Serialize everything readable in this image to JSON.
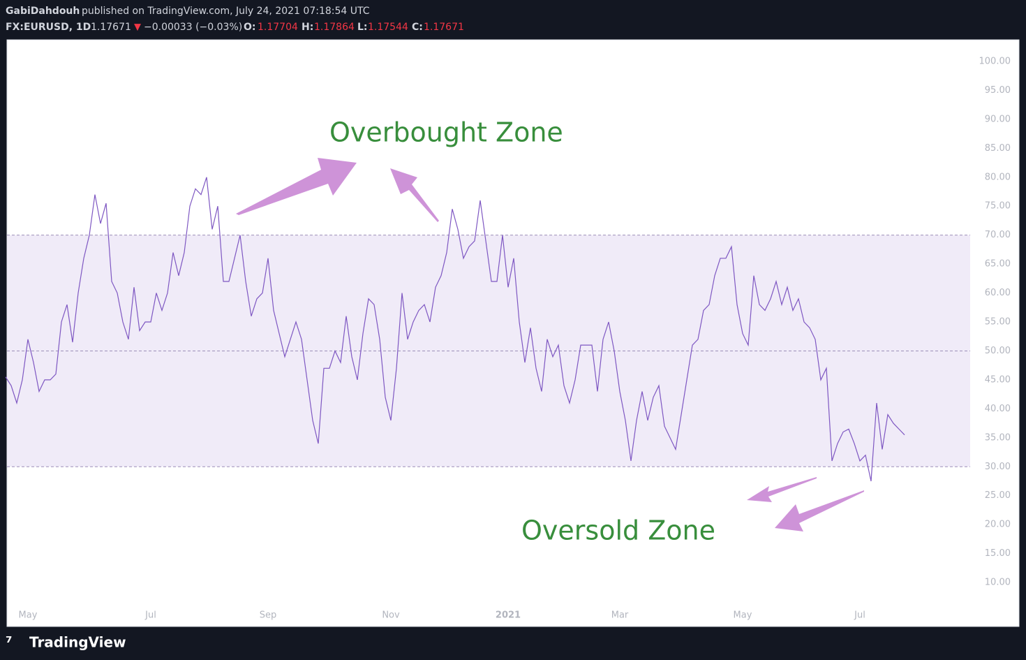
{
  "header": {
    "publisher": "GabiDahdouh",
    "published": "published on TradingView.com, July 24, 2021 07:18:54 UTC",
    "symbol": "FX:EURUSD, 1D",
    "last": "1.17671",
    "direction": "▼",
    "change": "−0.00033 (−0.03%)",
    "open_label": "O:",
    "open": "1.17704",
    "high_label": "H:",
    "high": "1.17864",
    "low_label": "L:",
    "low": "1.17544",
    "close_label": "C:",
    "close": "1.17671"
  },
  "footer": {
    "brand": "TradingView"
  },
  "chart_data": {
    "type": "line",
    "annotations": [
      "Overbought Zone",
      "Oversold Zone"
    ],
    "categories": [
      null,
      null,
      null,
      null,
      "May",
      null,
      null,
      null,
      null,
      null,
      null,
      null,
      null,
      null,
      null,
      null,
      null,
      null,
      null,
      null,
      null,
      null,
      null,
      null,
      null,
      null,
      "Jul",
      null,
      null,
      null,
      null,
      null,
      null,
      null,
      null,
      null,
      null,
      null,
      null,
      null,
      null,
      null,
      null,
      null,
      null,
      null,
      null,
      "Sep",
      null,
      null,
      null,
      null,
      null,
      null,
      null,
      null,
      null,
      null,
      null,
      null,
      null,
      null,
      null,
      null,
      null,
      null,
      null,
      null,
      null,
      "Nov",
      null,
      null,
      null,
      null,
      null,
      null,
      null,
      null,
      null,
      null,
      null,
      null,
      null,
      null,
      null,
      null,
      null,
      null,
      null,
      null,
      "2021",
      null,
      null,
      null,
      null,
      null,
      null,
      null,
      null,
      null,
      null,
      null,
      null,
      null,
      null,
      null,
      null,
      null,
      null,
      null,
      "Mar",
      null,
      null,
      null,
      null,
      null,
      null,
      null,
      null,
      null,
      null,
      null,
      null,
      null,
      null,
      null,
      null,
      null,
      null,
      null,
      null,
      null,
      "May",
      null,
      null,
      null,
      null,
      null,
      null,
      null,
      null,
      null,
      null,
      null,
      null,
      null,
      null,
      null,
      null,
      null,
      null,
      null,
      null,
      "Jul",
      null,
      null,
      null,
      null,
      null,
      null,
      null,
      null
    ],
    "series": [
      {
        "color": "#7e57c2",
        "values": [
          45.5,
          44,
          41,
          45,
          52,
          48,
          43,
          45,
          45,
          46,
          55,
          58,
          51.5,
          60,
          66,
          70,
          77,
          72,
          75.5,
          62,
          60,
          55,
          52,
          61,
          53.5,
          55,
          55,
          60,
          57,
          60,
          67,
          63,
          67,
          75,
          78,
          77,
          80,
          71,
          75,
          62,
          62,
          66,
          70,
          62,
          56,
          59,
          60,
          66,
          57,
          53,
          49,
          52,
          55,
          52,
          45,
          38,
          34,
          47,
          47,
          50,
          48,
          56,
          49,
          45,
          53,
          59,
          58,
          52,
          42,
          38,
          47,
          60,
          52,
          55,
          57,
          58,
          55,
          61,
          63,
          67,
          74.5,
          71,
          66,
          68,
          69,
          76,
          69,
          62,
          62,
          70,
          61,
          66,
          55,
          48,
          54,
          47,
          43,
          52,
          49,
          51,
          44,
          41,
          45,
          51,
          51,
          51,
          43,
          52,
          55,
          50,
          43,
          38,
          31,
          38,
          43,
          38,
          42,
          44,
          37,
          35,
          33,
          39,
          45,
          51,
          52,
          57,
          58,
          63,
          66,
          66,
          68,
          58,
          53,
          51,
          63,
          58,
          57,
          59,
          62,
          58,
          61,
          57,
          59,
          55,
          54,
          52,
          45,
          47,
          31,
          34,
          36,
          36.5,
          34,
          31,
          32,
          27.5,
          41,
          33,
          39,
          37.5,
          36.5,
          35.5
        ]
      }
    ],
    "ylim": [
      5,
      105
    ],
    "yticks": [
      {
        "value": 10,
        "label": "10.00"
      },
      {
        "value": 15,
        "label": "15.00"
      },
      {
        "value": 20,
        "label": "20.00"
      },
      {
        "value": 25,
        "label": "25.00"
      },
      {
        "value": 30,
        "label": "30.00"
      },
      {
        "value": 35,
        "label": "35.00"
      },
      {
        "value": 40,
        "label": "40.00"
      },
      {
        "value": 45,
        "label": "45.00"
      },
      {
        "value": 50,
        "label": "50.00"
      },
      {
        "value": 55,
        "label": "55.00"
      },
      {
        "value": 60,
        "label": "60.00"
      },
      {
        "value": 65,
        "label": "65.00"
      },
      {
        "value": 70,
        "label": "70.00"
      },
      {
        "value": 75,
        "label": "75.00"
      },
      {
        "value": 80,
        "label": "80.00"
      },
      {
        "value": 85,
        "label": "85.00"
      },
      {
        "value": 90,
        "label": "90.00"
      },
      {
        "value": 95,
        "label": "95.00"
      },
      {
        "value": 100,
        "label": "100.00"
      }
    ],
    "levels": [
      30,
      50,
      70
    ],
    "zone": [
      30,
      70
    ],
    "zone_color": "#f0ebf8",
    "grid": false
  }
}
